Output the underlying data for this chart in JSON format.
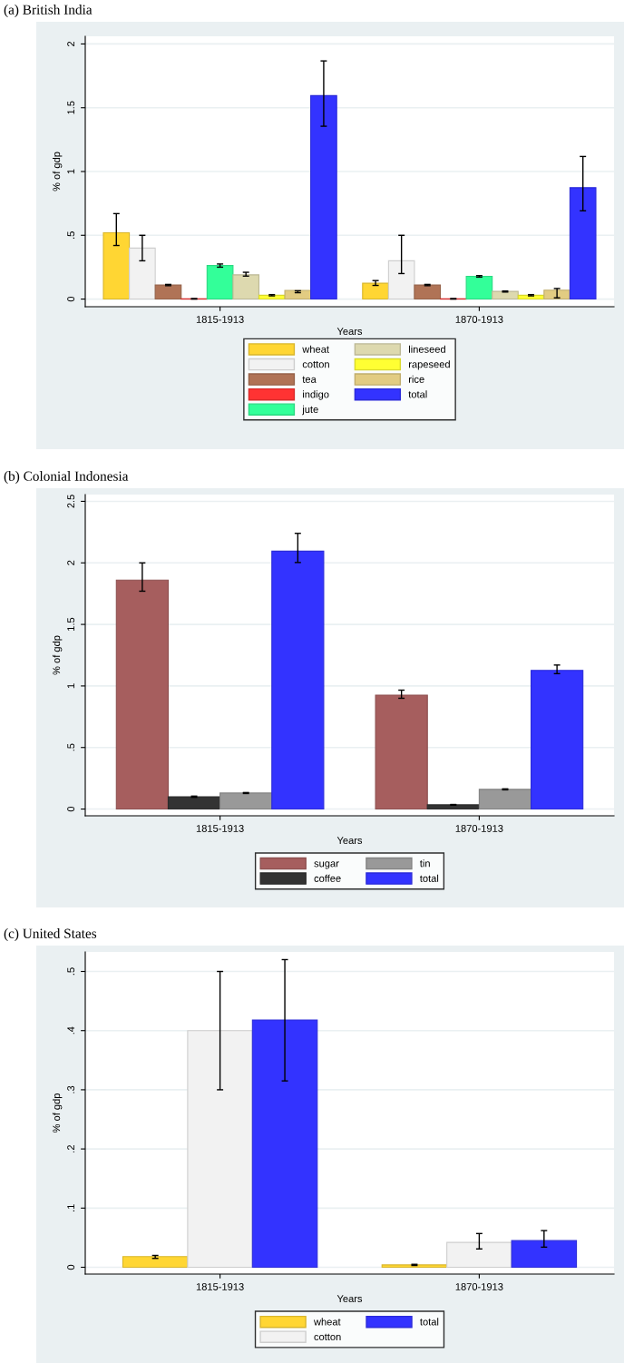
{
  "chart_data": [
    {
      "type": "bar",
      "title": "(a) British India",
      "xlabel": "Years",
      "ylabel": "% of gdp",
      "categories": [
        "1815-1913",
        "1870-1913"
      ],
      "ylim": [
        -0.06,
        2.06
      ],
      "yticks": [
        0,
        {
          "value": 0.5,
          "label": ".5"
        },
        1,
        1.5,
        2
      ],
      "grid": "y",
      "legend": "bottom",
      "series": [
        {
          "name": "wheat",
          "color": "#ffd633",
          "values": [
            0.52,
            0.124
          ],
          "errors": [
            [
              0.42,
              0.67
            ],
            [
              0.107,
              0.145
            ]
          ]
        },
        {
          "name": "cotton",
          "color": "#f2f2f2",
          "values": [
            0.4,
            0.3
          ],
          "errors": [
            [
              0.3,
              0.5
            ],
            [
              0.2,
              0.5
            ]
          ]
        },
        {
          "name": "tea",
          "color": "#b07356",
          "values": [
            0.11,
            0.11
          ],
          "errors": [
            [
              0.105,
              0.115
            ],
            [
              0.105,
              0.115
            ]
          ]
        },
        {
          "name": "indigo",
          "color": "#ff3333",
          "values": [
            0.002,
            0.002
          ],
          "errors": [
            [
              0.0,
              0.004
            ],
            [
              0.0,
              0.004
            ]
          ]
        },
        {
          "name": "jute",
          "color": "#33ff99",
          "values": [
            0.263,
            0.178
          ],
          "errors": [
            [
              0.25,
              0.275
            ],
            [
              0.172,
              0.184
            ]
          ]
        },
        {
          "name": "lineseed",
          "color": "#ddd9af",
          "values": [
            0.19,
            0.06
          ],
          "errors": [
            [
              0.18,
              0.21
            ],
            [
              0.055,
              0.063
            ]
          ]
        },
        {
          "name": "rapeseed",
          "color": "#ffff33",
          "values": [
            0.03,
            0.03
          ],
          "errors": [
            [
              0.025,
              0.035
            ],
            [
              0.025,
              0.035
            ]
          ]
        },
        {
          "name": "rice",
          "color": "#e2cc82",
          "values": [
            0.068,
            0.07
          ],
          "errors": [
            [
              0.05,
              0.065
            ],
            [
              0.01,
              0.083
            ]
          ]
        },
        {
          "name": "total",
          "color": "#3333ff",
          "values": [
            1.595,
            0.873
          ],
          "errors": [
            [
              1.355,
              1.867
            ],
            [
              0.692,
              1.118
            ]
          ]
        }
      ]
    },
    {
      "type": "bar",
      "title": "(b) Colonial Indonesia",
      "xlabel": "Years",
      "ylabel": "% of gdp",
      "categories": [
        "1815-1913",
        "1870-1913"
      ],
      "ylim": [
        -0.055,
        2.555
      ],
      "yticks": [
        0,
        {
          "value": 0.5,
          "label": ".5"
        },
        1,
        1.5,
        2,
        2.5
      ],
      "grid": "y",
      "legend": "bottom",
      "series": [
        {
          "name": "sugar",
          "color": "#a65e5e",
          "values": [
            1.86,
            0.926
          ],
          "errors": [
            [
              1.77,
              2.0
            ],
            [
              0.9,
              0.966
            ]
          ]
        },
        {
          "name": "coffee",
          "color": "#333333",
          "values": [
            0.1,
            0.034
          ],
          "errors": [
            [
              0.095,
              0.105
            ],
            [
              0.031,
              0.037
            ]
          ]
        },
        {
          "name": "tin",
          "color": "#999999",
          "values": [
            0.13,
            0.16
          ],
          "errors": [
            [
              0.126,
              0.134
            ],
            [
              0.156,
              0.164
            ]
          ]
        },
        {
          "name": "total",
          "color": "#3333ff",
          "values": [
            2.095,
            1.126
          ],
          "errors": [
            [
              2.003,
              2.24
            ],
            [
              1.1,
              1.17
            ]
          ]
        }
      ]
    },
    {
      "type": "bar",
      "title": "(c) United States",
      "xlabel": "Years",
      "ylabel": "% of gdp",
      "categories": [
        "1815-1913",
        "1870-1913"
      ],
      "ylim": [
        -0.0115,
        0.533
      ],
      "yticks": [
        0,
        {
          "value": 0.1,
          "label": ".1"
        },
        {
          "value": 0.2,
          "label": ".2"
        },
        {
          "value": 0.3,
          "label": ".3"
        },
        {
          "value": 0.4,
          "label": ".4"
        },
        {
          "value": 0.5,
          "label": ".5"
        }
      ],
      "grid": "y",
      "legend": "bottom",
      "series": [
        {
          "name": "wheat",
          "color": "#ffd633",
          "values": [
            0.018,
            0.004
          ],
          "errors": [
            [
              0.015,
              0.02
            ],
            [
              0.003,
              0.005
            ]
          ]
        },
        {
          "name": "cotton",
          "color": "#f2f2f2",
          "values": [
            0.4,
            0.042
          ],
          "errors": [
            [
              0.3,
              0.5
            ],
            [
              0.031,
              0.057
            ]
          ]
        },
        {
          "name": "total",
          "color": "#3333ff",
          "values": [
            0.418,
            0.045
          ],
          "errors": [
            [
              0.315,
              0.52
            ],
            [
              0.034,
              0.062
            ]
          ]
        }
      ]
    }
  ]
}
